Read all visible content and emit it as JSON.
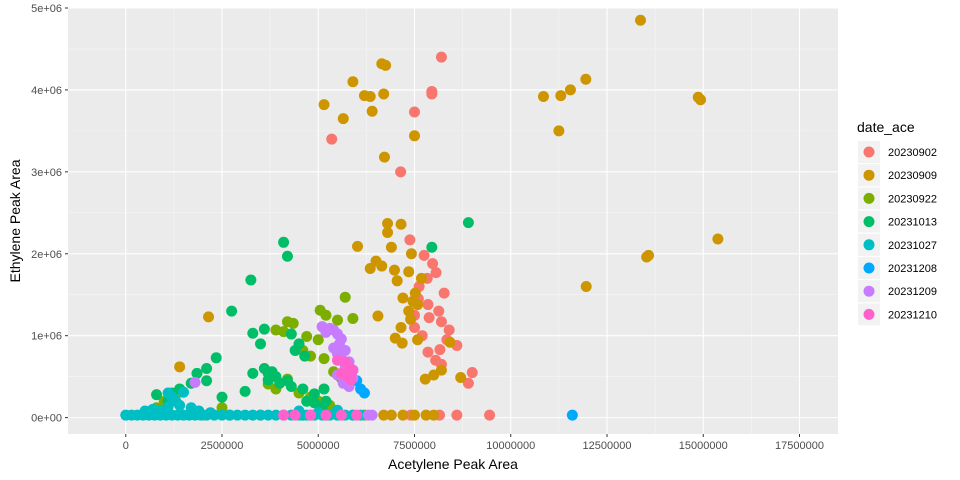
{
  "chart_data": {
    "type": "scatter",
    "title": "",
    "xlabel": "Acetylene Peak Area",
    "ylabel": "Ethylene Peak Area",
    "xlim": [
      -1500000,
      18500000
    ],
    "ylim": [
      -200000,
      5000000
    ],
    "x_ticks": [
      0,
      2500000,
      5000000,
      7500000,
      10000000,
      12500000,
      15000000,
      17500000
    ],
    "x_tick_labels": [
      "0",
      "2500000",
      "5000000",
      "7500000",
      "10000000",
      "12500000",
      "15000000",
      "17500000"
    ],
    "y_ticks": [
      0,
      1000000,
      2000000,
      3000000,
      4000000,
      5000000
    ],
    "y_tick_labels": [
      "0e+00",
      "1e+06",
      "2e+06",
      "3e+06",
      "4e+06",
      "5e+06"
    ],
    "grid": true,
    "background": "#ebebeb",
    "legend": {
      "title": "date_ace",
      "position": "right"
    },
    "series": [
      {
        "name": "20230902",
        "color": "#F8766D",
        "points": [
          [
            8200000,
            4400000
          ],
          [
            7950000,
            3980000
          ],
          [
            7950000,
            3950000
          ],
          [
            7500000,
            3730000
          ],
          [
            5350000,
            3400000
          ],
          [
            7140000,
            3000000
          ],
          [
            7380000,
            2170000
          ],
          [
            7750000,
            1980000
          ],
          [
            7970000,
            1880000
          ],
          [
            8060000,
            1770000
          ],
          [
            7830000,
            1700000
          ],
          [
            7620000,
            1600000
          ],
          [
            8270000,
            1520000
          ],
          [
            7600000,
            1450000
          ],
          [
            7850000,
            1380000
          ],
          [
            8130000,
            1300000
          ],
          [
            7500000,
            1250000
          ],
          [
            7880000,
            1220000
          ],
          [
            8200000,
            1170000
          ],
          [
            7500000,
            1100000
          ],
          [
            8400000,
            1070000
          ],
          [
            7700000,
            1000000
          ],
          [
            8340000,
            950000
          ],
          [
            8600000,
            880000
          ],
          [
            8160000,
            830000
          ],
          [
            7850000,
            800000
          ],
          [
            8050000,
            700000
          ],
          [
            8200000,
            650000
          ],
          [
            9000000,
            550000
          ],
          [
            8900000,
            420000
          ],
          [
            8600000,
            30000
          ],
          [
            9450000,
            30000
          ],
          [
            8150000,
            30000
          ],
          [
            7400000,
            30000
          ]
        ]
      },
      {
        "name": "20230909",
        "color": "#CD9600",
        "points": [
          [
            13370000,
            4850000
          ],
          [
            5150000,
            3820000
          ],
          [
            5900000,
            4100000
          ],
          [
            6200000,
            3930000
          ],
          [
            6350000,
            3920000
          ],
          [
            6650000,
            4320000
          ],
          [
            6750000,
            4300000
          ],
          [
            6700000,
            3950000
          ],
          [
            6400000,
            3740000
          ],
          [
            5650000,
            3650000
          ],
          [
            6720000,
            3180000
          ],
          [
            7500000,
            3440000
          ],
          [
            10850000,
            3920000
          ],
          [
            11300000,
            3930000
          ],
          [
            11550000,
            4000000
          ],
          [
            11950000,
            4130000
          ],
          [
            11250000,
            3500000
          ],
          [
            14870000,
            3910000
          ],
          [
            14930000,
            3880000
          ],
          [
            15380000,
            2180000
          ],
          [
            13530000,
            1960000
          ],
          [
            13580000,
            1980000
          ],
          [
            11960000,
            1600000
          ],
          [
            6800000,
            2370000
          ],
          [
            7150000,
            2360000
          ],
          [
            6800000,
            2260000
          ],
          [
            6900000,
            2080000
          ],
          [
            7420000,
            2000000
          ],
          [
            6020000,
            2090000
          ],
          [
            6500000,
            1910000
          ],
          [
            6350000,
            1820000
          ],
          [
            6650000,
            1850000
          ],
          [
            6980000,
            1800000
          ],
          [
            7050000,
            1670000
          ],
          [
            7350000,
            1780000
          ],
          [
            7520000,
            1520000
          ],
          [
            7680000,
            1700000
          ],
          [
            7200000,
            1460000
          ],
          [
            7460000,
            1420000
          ],
          [
            7580000,
            1380000
          ],
          [
            7350000,
            1300000
          ],
          [
            6550000,
            1240000
          ],
          [
            7400000,
            1200000
          ],
          [
            7150000,
            1100000
          ],
          [
            7000000,
            970000
          ],
          [
            7180000,
            910000
          ],
          [
            7580000,
            950000
          ],
          [
            8420000,
            920000
          ],
          [
            8200000,
            580000
          ],
          [
            8000000,
            520000
          ],
          [
            7780000,
            470000
          ],
          [
            8700000,
            490000
          ],
          [
            2150000,
            1230000
          ],
          [
            1400000,
            620000
          ],
          [
            2000000,
            30000
          ],
          [
            3500000,
            30000
          ],
          [
            5500000,
            30000
          ],
          [
            6700000,
            30000
          ],
          [
            6900000,
            30000
          ],
          [
            7200000,
            30000
          ],
          [
            7500000,
            30000
          ],
          [
            7800000,
            30000
          ],
          [
            8000000,
            30000
          ]
        ]
      },
      {
        "name": "20230922",
        "color": "#7CAE00",
        "points": [
          [
            5050000,
            1310000
          ],
          [
            5700000,
            1470000
          ],
          [
            4200000,
            1170000
          ],
          [
            4350000,
            1150000
          ],
          [
            3900000,
            1070000
          ],
          [
            4100000,
            1050000
          ],
          [
            5200000,
            1250000
          ],
          [
            5500000,
            1190000
          ],
          [
            5900000,
            1210000
          ],
          [
            4700000,
            990000
          ],
          [
            5000000,
            950000
          ],
          [
            4500000,
            870000
          ],
          [
            4600000,
            820000
          ],
          [
            4800000,
            750000
          ],
          [
            5150000,
            720000
          ],
          [
            5400000,
            560000
          ],
          [
            5600000,
            480000
          ],
          [
            4200000,
            470000
          ],
          [
            3700000,
            410000
          ],
          [
            3900000,
            350000
          ],
          [
            4500000,
            300000
          ],
          [
            4800000,
            250000
          ],
          [
            5000000,
            200000
          ],
          [
            5300000,
            150000
          ],
          [
            2500000,
            120000
          ],
          [
            1000000,
            200000
          ],
          [
            1300000,
            280000
          ],
          [
            800000,
            120000
          ],
          [
            5900000,
            30000
          ],
          [
            6200000,
            30000
          ]
        ]
      },
      {
        "name": "20231013",
        "color": "#00BE67",
        "points": [
          [
            4100000,
            2140000
          ],
          [
            4200000,
            1970000
          ],
          [
            3250000,
            1680000
          ],
          [
            2750000,
            1300000
          ],
          [
            3300000,
            1030000
          ],
          [
            3600000,
            1080000
          ],
          [
            4300000,
            1020000
          ],
          [
            3500000,
            900000
          ],
          [
            4500000,
            900000
          ],
          [
            4400000,
            820000
          ],
          [
            4650000,
            750000
          ],
          [
            2350000,
            730000
          ],
          [
            2100000,
            600000
          ],
          [
            1850000,
            540000
          ],
          [
            3600000,
            600000
          ],
          [
            3700000,
            540000
          ],
          [
            3300000,
            540000
          ],
          [
            3800000,
            560000
          ],
          [
            3900000,
            500000
          ],
          [
            4200000,
            450000
          ],
          [
            4000000,
            420000
          ],
          [
            3700000,
            460000
          ],
          [
            2100000,
            450000
          ],
          [
            1700000,
            420000
          ],
          [
            1400000,
            350000
          ],
          [
            1200000,
            300000
          ],
          [
            800000,
            280000
          ],
          [
            1100000,
            200000
          ],
          [
            2500000,
            250000
          ],
          [
            3100000,
            320000
          ],
          [
            4300000,
            380000
          ],
          [
            4600000,
            350000
          ],
          [
            4700000,
            200000
          ],
          [
            4900000,
            180000
          ],
          [
            5100000,
            120000
          ],
          [
            5200000,
            200000
          ],
          [
            4900000,
            290000
          ],
          [
            5150000,
            350000
          ],
          [
            4800000,
            30000
          ],
          [
            5200000,
            30000
          ],
          [
            4600000,
            30000
          ],
          [
            2700000,
            30000
          ],
          [
            8900000,
            2380000
          ],
          [
            7950000,
            2080000
          ]
        ]
      },
      {
        "name": "20231027",
        "color": "#00BFC4",
        "points": [
          [
            0,
            30000
          ],
          [
            150000,
            30000
          ],
          [
            300000,
            30000
          ],
          [
            450000,
            30000
          ],
          [
            600000,
            30000
          ],
          [
            750000,
            30000
          ],
          [
            900000,
            30000
          ],
          [
            1050000,
            30000
          ],
          [
            1200000,
            30000
          ],
          [
            1350000,
            30000
          ],
          [
            1500000,
            30000
          ],
          [
            1650000,
            30000
          ],
          [
            1800000,
            30000
          ],
          [
            1950000,
            30000
          ],
          [
            2100000,
            30000
          ],
          [
            2300000,
            30000
          ],
          [
            2500000,
            30000
          ],
          [
            2700000,
            30000
          ],
          [
            2900000,
            30000
          ],
          [
            3100000,
            30000
          ],
          [
            3300000,
            30000
          ],
          [
            3500000,
            30000
          ],
          [
            3700000,
            30000
          ],
          [
            3900000,
            30000
          ],
          [
            4100000,
            30000
          ],
          [
            4300000,
            30000
          ],
          [
            4500000,
            30000
          ],
          [
            4700000,
            30000
          ],
          [
            4900000,
            30000
          ],
          [
            5100000,
            30000
          ],
          [
            5300000,
            30000
          ],
          [
            5500000,
            30000
          ],
          [
            5700000,
            30000
          ],
          [
            5900000,
            30000
          ],
          [
            6100000,
            30000
          ],
          [
            500000,
            80000
          ],
          [
            700000,
            100000
          ],
          [
            900000,
            90000
          ],
          [
            1100000,
            130000
          ],
          [
            1300000,
            200000
          ],
          [
            1500000,
            310000
          ],
          [
            1100000,
            300000
          ],
          [
            1200000,
            250000
          ],
          [
            1400000,
            150000
          ],
          [
            1700000,
            120000
          ],
          [
            1900000,
            80000
          ],
          [
            2200000,
            60000
          ],
          [
            4500000,
            80000
          ],
          [
            5000000,
            60000
          ],
          [
            5500000,
            90000
          ]
        ]
      },
      {
        "name": "20231208",
        "color": "#00A9FF",
        "points": [
          [
            11600000,
            30000
          ],
          [
            5700000,
            600000
          ],
          [
            5900000,
            580000
          ],
          [
            6000000,
            450000
          ],
          [
            5800000,
            400000
          ],
          [
            6100000,
            350000
          ],
          [
            6200000,
            300000
          ],
          [
            5700000,
            450000
          ],
          [
            5500000,
            800000
          ],
          [
            5600000,
            700000
          ]
        ]
      },
      {
        "name": "20231209",
        "color": "#C77CFF",
        "points": [
          [
            5100000,
            1110000
          ],
          [
            5300000,
            1090000
          ],
          [
            5400000,
            1070000
          ],
          [
            5500000,
            1020000
          ],
          [
            5200000,
            1040000
          ],
          [
            5600000,
            960000
          ],
          [
            5550000,
            900000
          ],
          [
            5400000,
            850000
          ],
          [
            5700000,
            820000
          ],
          [
            5500000,
            780000
          ],
          [
            5600000,
            720000
          ],
          [
            5800000,
            680000
          ],
          [
            5700000,
            600000
          ],
          [
            5500000,
            520000
          ],
          [
            5900000,
            480000
          ],
          [
            5650000,
            420000
          ],
          [
            5800000,
            380000
          ],
          [
            1800000,
            430000
          ],
          [
            6300000,
            30000
          ],
          [
            6400000,
            30000
          ]
        ]
      },
      {
        "name": "20231210",
        "color": "#FF61CC",
        "points": [
          [
            5500000,
            700000
          ],
          [
            5700000,
            680000
          ],
          [
            5800000,
            620000
          ],
          [
            5900000,
            580000
          ],
          [
            5600000,
            540000
          ],
          [
            5750000,
            500000
          ],
          [
            5850000,
            460000
          ],
          [
            4100000,
            30000
          ],
          [
            4400000,
            30000
          ],
          [
            4800000,
            30000
          ],
          [
            5200000,
            30000
          ],
          [
            5600000,
            30000
          ],
          [
            6000000,
            30000
          ]
        ]
      }
    ]
  }
}
